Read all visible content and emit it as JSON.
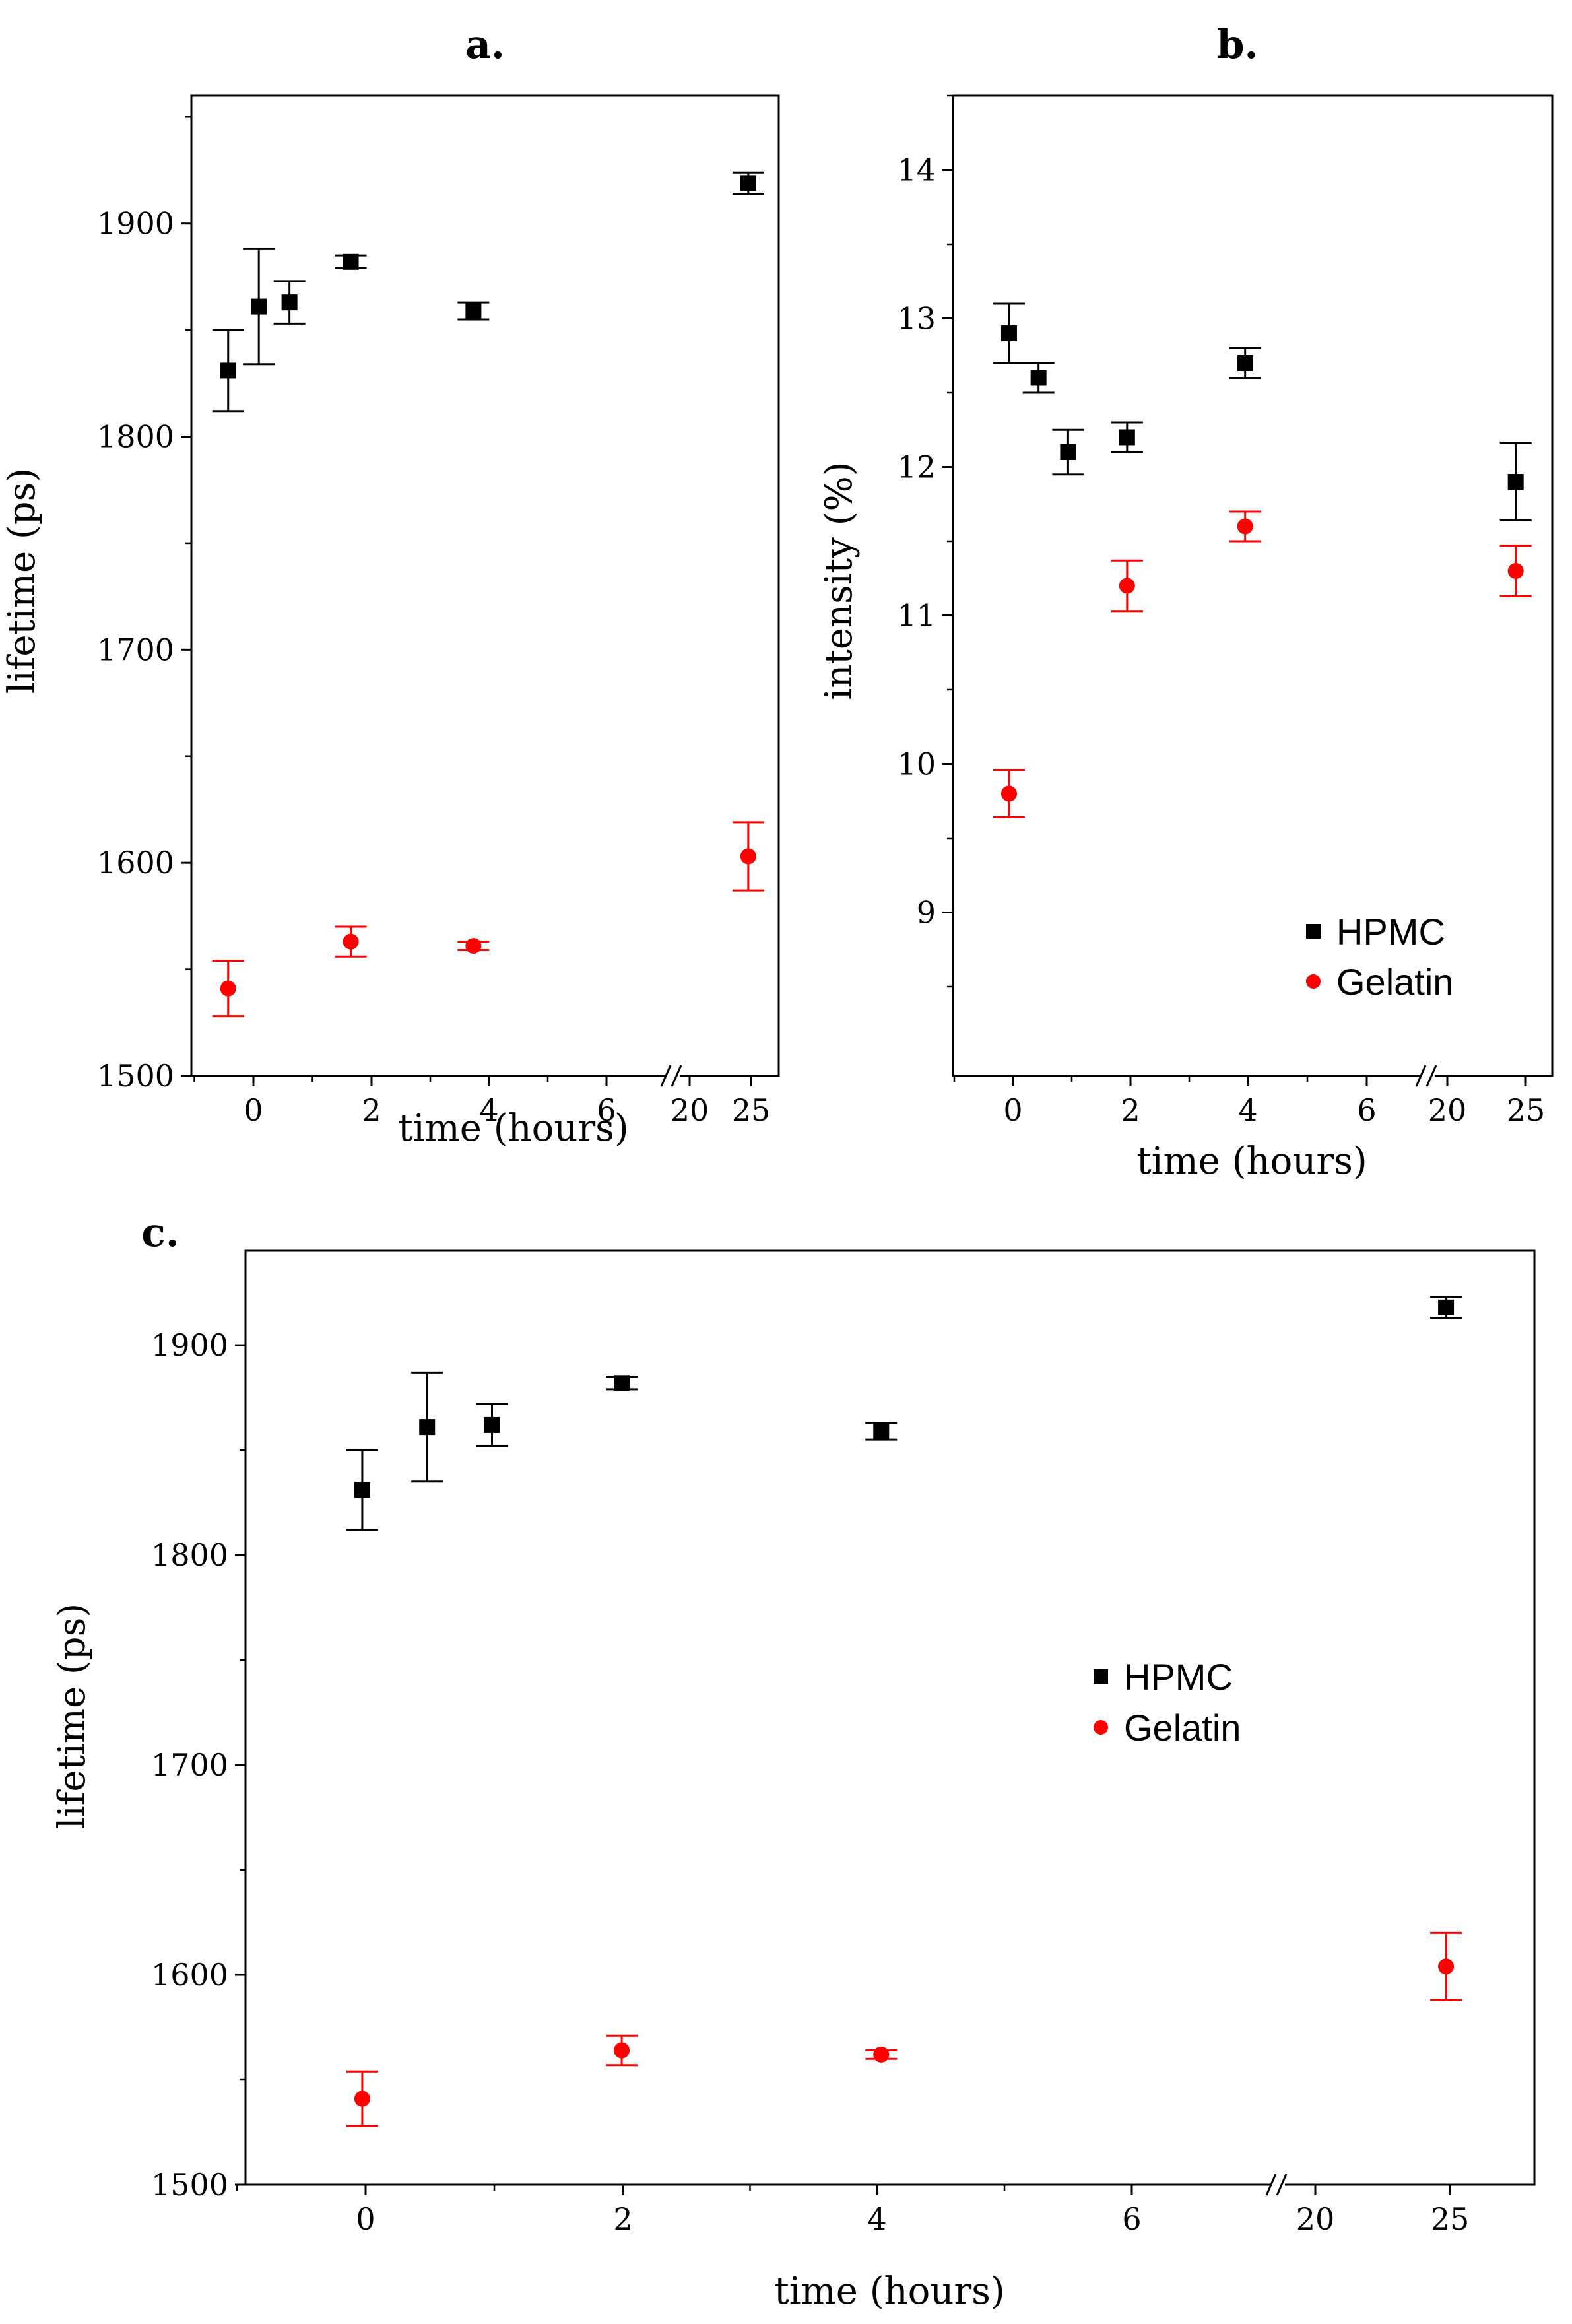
{
  "chart_data": [
    {
      "panel": "a.",
      "type": "scatter",
      "xlabel": "time (hours)",
      "ylabel": "lifetime (ps)",
      "ylim": [
        1500,
        1960
      ],
      "y_ticks": [
        1500,
        1600,
        1700,
        1800,
        1900
      ],
      "x_tick_labels": [
        "0",
        "2",
        "4",
        "6",
        "20",
        "25"
      ],
      "axis_break": "//",
      "series": [
        {
          "name": "HPMC",
          "marker": "square",
          "color": "#000000",
          "points": [
            {
              "x": 0,
              "y": 1831,
              "err": 19
            },
            {
              "x": 0.5,
              "y": 1861,
              "err": 27
            },
            {
              "x": 1,
              "y": 1863,
              "err": 10
            },
            {
              "x": 2,
              "y": 1882,
              "err": 3
            },
            {
              "x": 4,
              "y": 1859,
              "err": 4
            },
            {
              "x": 24,
              "y": 1919,
              "err": 5
            }
          ]
        },
        {
          "name": "Gelatin",
          "marker": "circle",
          "color": "#ff0000",
          "points": [
            {
              "x": 0,
              "y": 1541,
              "err": 13
            },
            {
              "x": 2,
              "y": 1563,
              "err": 7
            },
            {
              "x": 4,
              "y": 1561,
              "err": 2
            },
            {
              "x": 24,
              "y": 1603,
              "err": 16
            }
          ]
        }
      ]
    },
    {
      "panel": "b.",
      "type": "scatter",
      "xlabel": "time (hours)",
      "ylabel": "intensity (%)",
      "ylim": [
        7.9,
        14.5
      ],
      "y_ticks": [
        9,
        10,
        11,
        12,
        13,
        14
      ],
      "x_tick_labels": [
        "0",
        "2",
        "4",
        "6",
        "20",
        "25"
      ],
      "axis_break": "//",
      "legend": [
        "HPMC",
        "Gelatin"
      ],
      "legend_position": "bottom-right",
      "series": [
        {
          "name": "HPMC",
          "marker": "square",
          "color": "#000000",
          "points": [
            {
              "x": 0,
              "y": 12.9,
              "err": 0.2
            },
            {
              "x": 0.5,
              "y": 12.6,
              "err": 0.1
            },
            {
              "x": 1,
              "y": 12.1,
              "err": 0.15
            },
            {
              "x": 2,
              "y": 12.2,
              "err": 0.1
            },
            {
              "x": 4,
              "y": 12.7,
              "err": 0.1
            },
            {
              "x": 24,
              "y": 11.9,
              "err": 0.26
            }
          ]
        },
        {
          "name": "Gelatin",
          "marker": "circle",
          "color": "#ff0000",
          "points": [
            {
              "x": 0,
              "y": 9.8,
              "err": 0.16
            },
            {
              "x": 2,
              "y": 11.2,
              "err": 0.17
            },
            {
              "x": 4,
              "y": 11.6,
              "err": 0.1
            },
            {
              "x": 24,
              "y": 11.3,
              "err": 0.17
            }
          ]
        }
      ]
    },
    {
      "panel": "c.",
      "type": "scatter",
      "xlabel": "time (hours)",
      "ylabel": "lifetime (ps)",
      "ylim": [
        1500,
        1945
      ],
      "y_ticks": [
        1500,
        1600,
        1700,
        1800,
        1900
      ],
      "x_tick_labels": [
        "0",
        "2",
        "4",
        "6",
        "20",
        "25"
      ],
      "axis_break": "//",
      "legend": [
        "HPMC",
        "Gelatin"
      ],
      "legend_position": "center-right",
      "series": [
        {
          "name": "HPMC",
          "marker": "square",
          "color": "#000000",
          "points": [
            {
              "x": 0,
              "y": 1831,
              "err": 19
            },
            {
              "x": 0.5,
              "y": 1861,
              "err": 26
            },
            {
              "x": 1,
              "y": 1862,
              "err": 10
            },
            {
              "x": 2,
              "y": 1882,
              "err": 3
            },
            {
              "x": 4,
              "y": 1859,
              "err": 4
            },
            {
              "x": 24,
              "y": 1918,
              "err": 5
            }
          ]
        },
        {
          "name": "Gelatin",
          "marker": "circle",
          "color": "#ff0000",
          "points": [
            {
              "x": 0,
              "y": 1541,
              "err": 13
            },
            {
              "x": 2,
              "y": 1564,
              "err": 7
            },
            {
              "x": 4,
              "y": 1562,
              "err": 2
            },
            {
              "x": 24,
              "y": 1604,
              "err": 16
            }
          ]
        }
      ]
    }
  ]
}
